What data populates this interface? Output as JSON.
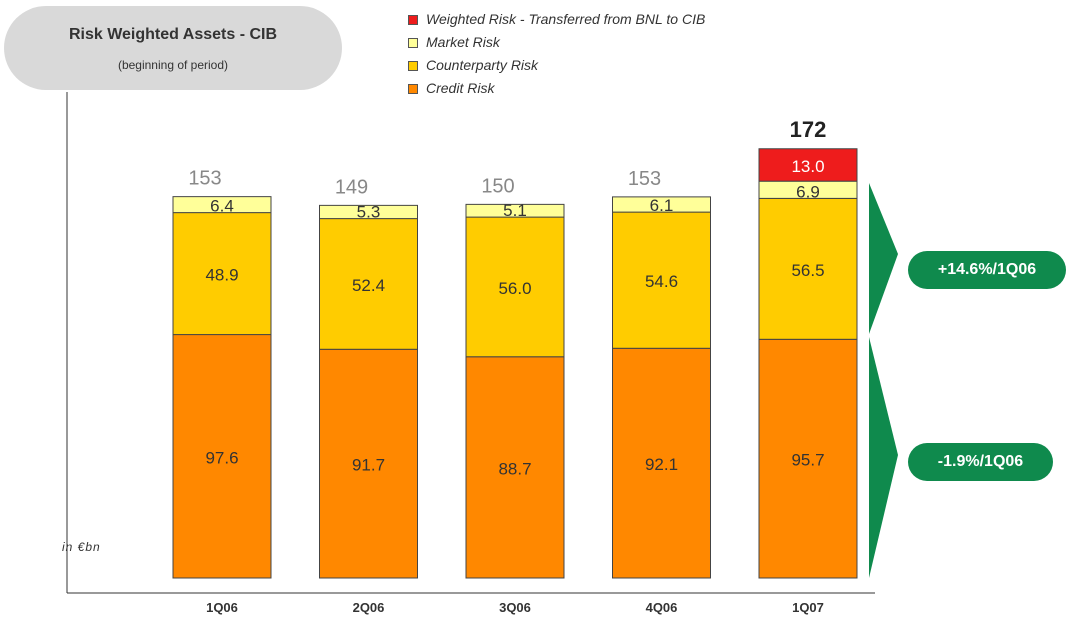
{
  "title": {
    "main": "Risk Weighted Assets  - CIB",
    "sub": "(beginning of period)"
  },
  "unit_label": "in €bn",
  "legend": [
    {
      "label": "Weighted Risk - Transferred from BNL to CIB",
      "color": "#ee1c1c"
    },
    {
      "label": "Market Risk",
      "color": "#ffff99"
    },
    {
      "label": "Counterparty Risk",
      "color": "#ffcc00"
    },
    {
      "label": "Credit Risk",
      "color": "#ff8800"
    }
  ],
  "badges": {
    "upper": "+14.6%/1Q06",
    "lower": "-1.9%/1Q06"
  },
  "chart_data": {
    "type": "bar",
    "stacked": true,
    "categories": [
      "1Q06",
      "2Q06",
      "3Q06",
      "4Q06",
      "1Q07"
    ],
    "series": [
      {
        "name": "Credit Risk",
        "color": "#ff8800",
        "values": [
          97.6,
          91.7,
          88.7,
          92.1,
          95.7
        ],
        "labels": [
          "97.6",
          "91.7",
          "88.7",
          "92.1",
          "95.7"
        ]
      },
      {
        "name": "Counterparty Risk",
        "color": "#ffcc00",
        "values": [
          48.9,
          52.4,
          56.0,
          54.6,
          56.5
        ],
        "labels": [
          "48.9",
          "52.4",
          "56.0",
          "54.6",
          "56.5"
        ]
      },
      {
        "name": "Market Risk",
        "color": "#ffff99",
        "values": [
          6.4,
          5.3,
          5.1,
          6.1,
          6.9
        ],
        "labels": [
          "6.4",
          "5.3",
          "5.1",
          "6.1",
          "6.9"
        ]
      },
      {
        "name": "Weighted Risk - Transferred from BNL to CIB",
        "color": "#ee1c1c",
        "values": [
          0,
          0,
          0,
          0,
          13.0
        ],
        "labels": [
          "",
          "",
          "",
          "",
          "13.0"
        ]
      }
    ],
    "totals": [
      "153",
      "149",
      "150",
      "153",
      "172"
    ],
    "ylim": [
      0,
      172
    ]
  }
}
